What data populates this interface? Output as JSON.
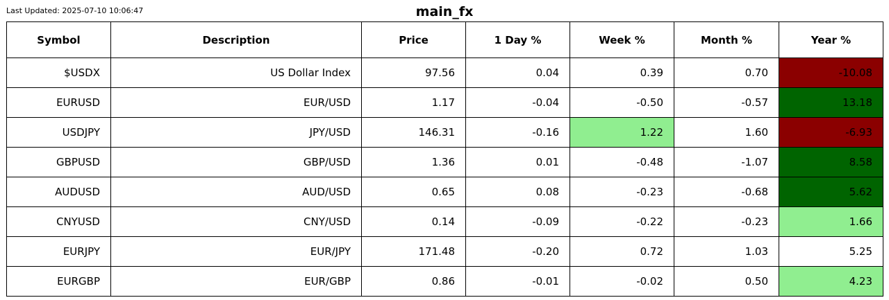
{
  "last_updated": "Last Updated: 2025-07-10 10:06:47",
  "title": "main_fx",
  "colors": {
    "dark_red": "#8b0000",
    "dark_green": "#006400",
    "light_green": "#90ee90",
    "white": "#ffffff"
  },
  "chart_data": {
    "type": "table",
    "title": "main_fx",
    "columns": [
      "Symbol",
      "Description",
      "Price",
      "1 Day %",
      "Week %",
      "Month %",
      "Year %"
    ],
    "rows": [
      {
        "symbol": "$USDX",
        "description": "US Dollar Index",
        "price": "97.56",
        "day": "0.04",
        "week": "0.39",
        "month": "0.70",
        "year": "-10.08",
        "colors": {
          "day": "white",
          "week": "white",
          "month": "white",
          "year": "dark_red"
        }
      },
      {
        "symbol": "EURUSD",
        "description": "EUR/USD",
        "price": "1.17",
        "day": "-0.04",
        "week": "-0.50",
        "month": "-0.57",
        "year": "13.18",
        "colors": {
          "day": "white",
          "week": "white",
          "month": "white",
          "year": "dark_green"
        }
      },
      {
        "symbol": "USDJPY",
        "description": "JPY/USD",
        "price": "146.31",
        "day": "-0.16",
        "week": "1.22",
        "month": "1.60",
        "year": "-6.93",
        "colors": {
          "day": "white",
          "week": "light_green",
          "month": "white",
          "year": "dark_red"
        }
      },
      {
        "symbol": "GBPUSD",
        "description": "GBP/USD",
        "price": "1.36",
        "day": "0.01",
        "week": "-0.48",
        "month": "-1.07",
        "year": "8.58",
        "colors": {
          "day": "white",
          "week": "white",
          "month": "white",
          "year": "dark_green"
        }
      },
      {
        "symbol": "AUDUSD",
        "description": "AUD/USD",
        "price": "0.65",
        "day": "0.08",
        "week": "-0.23",
        "month": "-0.68",
        "year": "5.62",
        "colors": {
          "day": "white",
          "week": "white",
          "month": "white",
          "year": "dark_green"
        }
      },
      {
        "symbol": "CNYUSD",
        "description": "CNY/USD",
        "price": "0.14",
        "day": "-0.09",
        "week": "-0.22",
        "month": "-0.23",
        "year": "1.66",
        "colors": {
          "day": "white",
          "week": "white",
          "month": "white",
          "year": "light_green"
        }
      },
      {
        "symbol": "EURJPY",
        "description": "EUR/JPY",
        "price": "171.48",
        "day": "-0.20",
        "week": "0.72",
        "month": "1.03",
        "year": "5.25",
        "colors": {
          "day": "white",
          "week": "white",
          "month": "white",
          "year": "white"
        }
      },
      {
        "symbol": "EURGBP",
        "description": "EUR/GBP",
        "price": "0.86",
        "day": "-0.01",
        "week": "-0.02",
        "month": "0.50",
        "year": "4.23",
        "colors": {
          "day": "white",
          "week": "white",
          "month": "white",
          "year": "light_green"
        }
      }
    ]
  }
}
